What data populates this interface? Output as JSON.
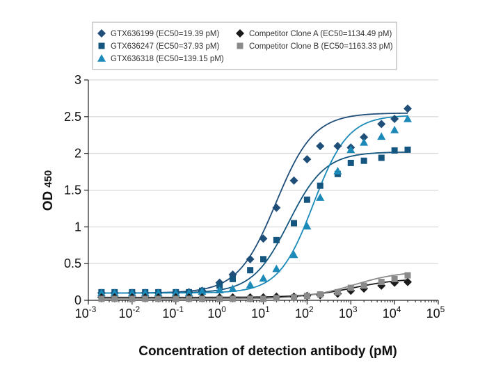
{
  "chart_data": {
    "type": "scatter",
    "title": "",
    "xlabel": "Concentration of detection antibody (pM)",
    "ylabel_main": "OD",
    "ylabel_sub": "450",
    "xscale": "log",
    "xlim_exp": [
      -3,
      5
    ],
    "x_ticks": [
      {
        "base": "10",
        "exp": "-3",
        "e": -3
      },
      {
        "base": "10",
        "exp": "-2",
        "e": -2
      },
      {
        "base": "10",
        "exp": "-1",
        "e": -1
      },
      {
        "base": "10",
        "exp": "0",
        "e": 0
      },
      {
        "base": "10",
        "exp": "1",
        "e": 1
      },
      {
        "base": "10",
        "exp": "2",
        "e": 2
      },
      {
        "base": "10",
        "exp": "3",
        "e": 3
      },
      {
        "base": "10",
        "exp": "4",
        "e": 4
      },
      {
        "base": "10",
        "exp": "5",
        "e": 5
      }
    ],
    "ylim": [
      0,
      3
    ],
    "y_ticks": [
      {
        "label": "0",
        "v": 0
      },
      {
        "label": "0.5",
        "v": 0.5
      },
      {
        "label": "1",
        "v": 1
      },
      {
        "label": "1.5",
        "v": 1.5
      },
      {
        "label": "2",
        "v": 2
      },
      {
        "label": "2.5",
        "v": 2.5
      },
      {
        "label": "3",
        "v": 3
      }
    ],
    "grid": "horizontal",
    "legend_position": "top",
    "x_exponents": [
      -2.7,
      -2.4,
      -2.0,
      -1.7,
      -1.4,
      -1.0,
      -0.7,
      -0.4,
      0.0,
      0.3,
      0.7,
      1.0,
      1.3,
      1.7,
      2.0,
      2.3,
      2.7,
      3.0,
      3.3,
      3.7,
      4.0,
      4.3
    ],
    "series": [
      {
        "name": "GTX636199 (EC50=19.39 pM)",
        "marker": "diamond",
        "color": "#1f4e79",
        "values": [
          0.1,
          0.1,
          0.1,
          0.1,
          0.1,
          0.1,
          0.11,
          0.13,
          0.24,
          0.35,
          0.56,
          0.84,
          1.26,
          1.63,
          1.92,
          2.1,
          2.1,
          2.08,
          2.22,
          2.4,
          2.47,
          2.61
        ],
        "fit": {
          "bottom": 0.1,
          "top": 2.55,
          "ec50": 19.39,
          "hill": 1.0
        }
      },
      {
        "name": "GTX636247 (EC50=37.93 pM)",
        "marker": "square",
        "color": "#14567f",
        "values": [
          0.11,
          0.11,
          0.11,
          0.11,
          0.11,
          0.11,
          0.11,
          0.13,
          0.2,
          0.29,
          0.41,
          0.56,
          0.82,
          1.05,
          1.37,
          1.56,
          1.72,
          1.87,
          1.9,
          1.94,
          2.04,
          2.05
        ],
        "fit": {
          "bottom": 0.1,
          "top": 2.02,
          "ec50": 37.93,
          "hill": 1.05
        }
      },
      {
        "name": "GTX636318 (EC50=139.15 pM)",
        "marker": "triangle",
        "color": "#1b8ab8",
        "values": [
          0.1,
          0.1,
          0.1,
          0.1,
          0.1,
          0.1,
          0.1,
          0.12,
          0.14,
          0.16,
          0.21,
          0.3,
          0.43,
          0.62,
          1.01,
          1.4,
          1.76,
          2.05,
          2.15,
          2.23,
          2.32,
          2.47
        ],
        "fit": {
          "bottom": 0.1,
          "top": 2.52,
          "ec50": 139.15,
          "hill": 1.1
        }
      },
      {
        "name": "Competitor Clone A (EC50=1134.49 pM)",
        "marker": "diamond",
        "color": "#1a1a1a",
        "values": [
          0.04,
          0.04,
          0.04,
          0.04,
          0.04,
          0.04,
          0.04,
          0.04,
          0.04,
          0.04,
          0.04,
          0.04,
          0.05,
          0.05,
          0.06,
          0.07,
          0.09,
          0.13,
          0.16,
          0.2,
          0.24,
          0.25
        ],
        "fit": {
          "bottom": 0.04,
          "top": 0.3,
          "ec50": 1134.49,
          "hill": 0.8
        }
      },
      {
        "name": "Competitor Clone B (EC50=1163.33 pM)",
        "marker": "square",
        "color": "#8a8a8a",
        "values": [
          0.02,
          0.02,
          0.02,
          0.02,
          0.02,
          0.02,
          0.02,
          0.02,
          0.02,
          0.02,
          0.02,
          0.02,
          0.03,
          0.04,
          0.06,
          0.08,
          0.11,
          0.17,
          0.2,
          0.25,
          0.29,
          0.34
        ],
        "fit": {
          "bottom": 0.02,
          "top": 0.4,
          "ec50": 1163.33,
          "hill": 0.8
        }
      }
    ]
  }
}
